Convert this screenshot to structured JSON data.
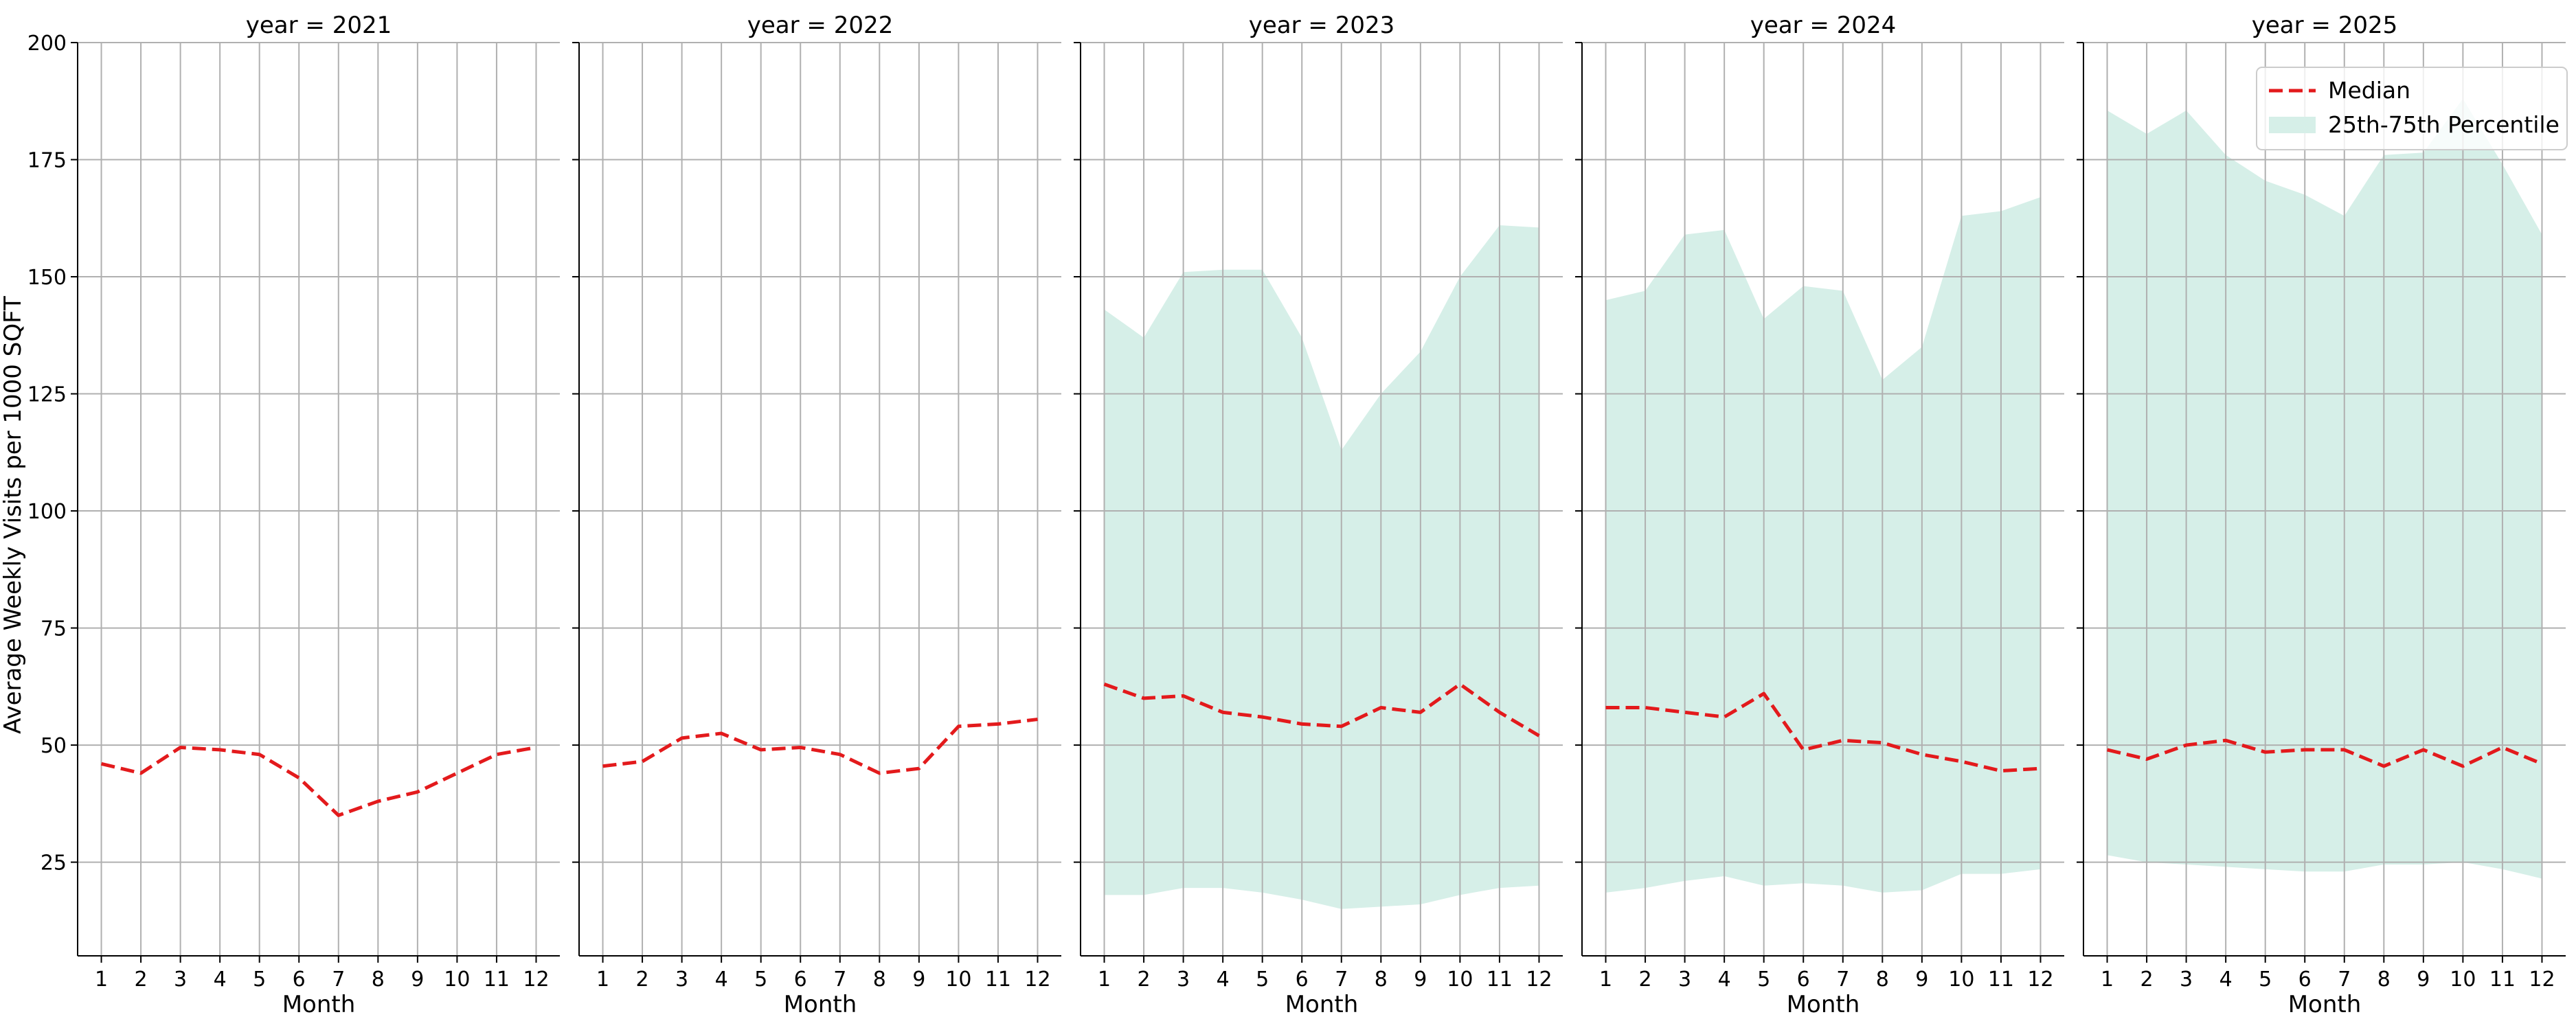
{
  "chart_data": {
    "type": "line",
    "layout": "facet-columns",
    "facet_variable": "year",
    "ylabel": "Average Weekly Visits per 1000 SQFT",
    "xlabel": "Month",
    "ylim": [
      5,
      200
    ],
    "yticks": [
      25,
      50,
      75,
      100,
      125,
      150,
      175,
      200
    ],
    "xticks": [
      1,
      2,
      3,
      4,
      5,
      6,
      7,
      8,
      9,
      10,
      11,
      12
    ],
    "grid": true,
    "colors": {
      "median": "#e31a1c",
      "band": "#d6efe8"
    },
    "legend": {
      "placement": "top-right",
      "entries": [
        {
          "label": "Median",
          "style": "dashed-line",
          "color": "#e31a1c"
        },
        {
          "label": "25th-75th Percentile",
          "style": "filled-band",
          "color": "#d6efe8"
        }
      ]
    },
    "panels": [
      {
        "title": "year = 2021",
        "median": [
          46,
          44,
          49.5,
          49,
          48,
          43,
          35,
          38,
          40,
          44,
          48,
          49.5
        ],
        "p25": null,
        "p75": null
      },
      {
        "title": "year = 2022",
        "median": [
          45.5,
          46.5,
          51.5,
          52.5,
          49,
          49.5,
          48,
          44,
          45,
          54,
          54.5,
          55.5
        ],
        "p25": null,
        "p75": null
      },
      {
        "title": "year = 2023",
        "median": [
          63,
          60,
          60.5,
          57,
          56,
          54.5,
          54,
          58,
          57,
          63,
          57,
          52
        ],
        "p25": [
          18,
          18,
          19.5,
          19.5,
          18.5,
          17,
          15,
          15.5,
          16,
          18,
          19.5,
          20
        ],
        "p75": [
          143,
          137,
          151,
          151.5,
          151.5,
          137,
          113,
          125,
          134,
          150,
          161,
          160.5
        ]
      },
      {
        "title": "year = 2024",
        "median": [
          58,
          58,
          57,
          56,
          61,
          49,
          51,
          50.5,
          48,
          46.5,
          44.5,
          45
        ],
        "p25": [
          18.5,
          19.5,
          21,
          22,
          20,
          20.5,
          20,
          18.5,
          19,
          22.5,
          22.5,
          23.5
        ],
        "p75": [
          145,
          147,
          159,
          160,
          141,
          148,
          147,
          128,
          135,
          163,
          164,
          167
        ]
      },
      {
        "title": "year = 2025",
        "median": [
          49,
          47,
          50,
          51,
          48.5,
          49,
          49,
          45.5,
          49,
          45.5,
          49.5,
          46
        ],
        "p25": [
          26.5,
          25,
          24.5,
          24,
          23.5,
          23,
          23,
          24.5,
          24.5,
          25,
          23.5,
          21.5
        ],
        "p75": [
          185.5,
          180.5,
          185.5,
          176,
          170.5,
          167.5,
          163,
          176,
          176.5,
          188,
          174,
          159
        ]
      }
    ]
  }
}
